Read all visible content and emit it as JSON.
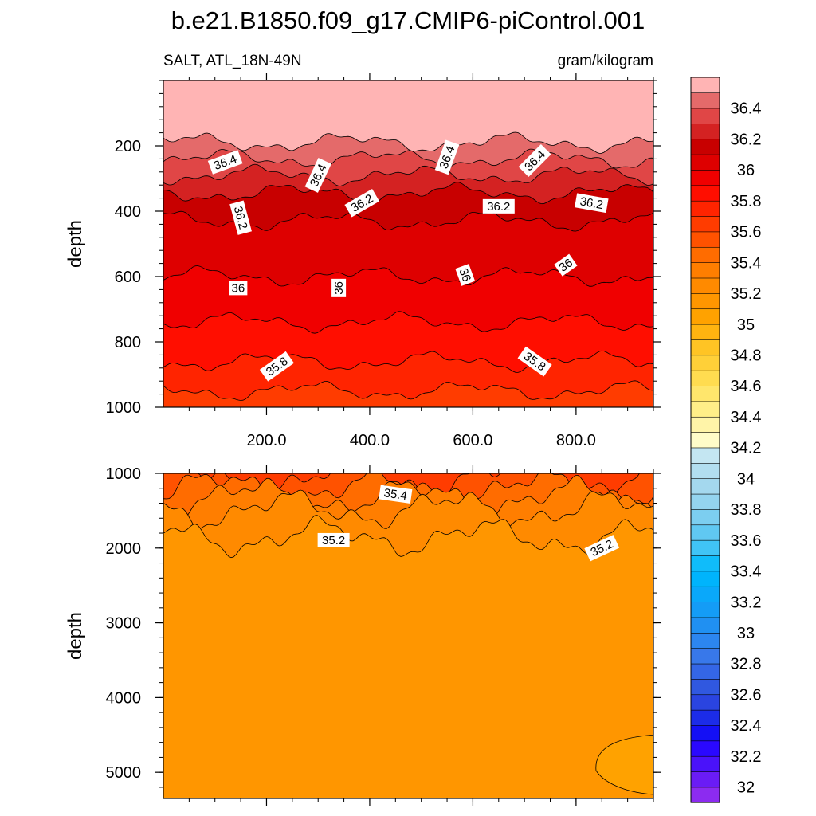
{
  "title": "b.e21.B1850.f09_g17.CMIP6-piControl.001",
  "chart_data": [
    {
      "type": "contour",
      "panel": "upper",
      "variable_label": "SALT, ATL_18N-49N",
      "units_label": "gram/kilogram",
      "ylabel": "depth",
      "xlabel": "",
      "xlim": [
        0,
        950
      ],
      "ylim": [
        1000,
        0
      ],
      "y_reversed": true,
      "x_tick_labels": [
        "200.0",
        "400.0",
        "600.0",
        "800.0"
      ],
      "x_ticks": [
        200,
        400,
        600,
        800
      ],
      "y_ticks": [
        200,
        400,
        600,
        800,
        1000
      ],
      "y_tick_labels": [
        "200",
        "400",
        "600",
        "800",
        "1000"
      ],
      "contour_lines": [
        {
          "level": 36.5,
          "mean_depth": 190
        },
        {
          "level": 36.4,
          "mean_depth": 240
        },
        {
          "level": 36.3,
          "mean_depth": 290
        },
        {
          "level": 36.2,
          "mean_depth": 345
        },
        {
          "level": 36.1,
          "mean_depth": 430
        },
        {
          "level": 36.0,
          "mean_depth": 600
        },
        {
          "level": 35.9,
          "mean_depth": 740
        },
        {
          "level": 35.8,
          "mean_depth": 860
        },
        {
          "level": 35.7,
          "mean_depth": 950
        }
      ],
      "contour_labels": [
        {
          "text": "36.4",
          "x": 120,
          "y": 250
        },
        {
          "text": "36.4",
          "x": 300,
          "y": 290
        },
        {
          "text": "36.4",
          "x": 550,
          "y": 235
        },
        {
          "text": "36.4",
          "x": 720,
          "y": 245
        },
        {
          "text": "36.2",
          "x": 150,
          "y": 420
        },
        {
          "text": "36.2",
          "x": 385,
          "y": 375
        },
        {
          "text": "36.2",
          "x": 650,
          "y": 385
        },
        {
          "text": "36.2",
          "x": 830,
          "y": 375
        },
        {
          "text": "36",
          "x": 145,
          "y": 635
        },
        {
          "text": "36",
          "x": 340,
          "y": 635
        },
        {
          "text": "36",
          "x": 585,
          "y": 595
        },
        {
          "text": "36",
          "x": 780,
          "y": 565
        },
        {
          "text": "35.8",
          "x": 220,
          "y": 875
        },
        {
          "text": "35.8",
          "x": 720,
          "y": 860
        }
      ]
    },
    {
      "type": "contour",
      "panel": "lower",
      "ylabel": "depth",
      "xlim": [
        0,
        950
      ],
      "ylim": [
        5350,
        1000
      ],
      "y_reversed": true,
      "y_ticks": [
        1000,
        2000,
        3000,
        4000,
        5000
      ],
      "y_tick_labels": [
        "1000",
        "2000",
        "3000",
        "4000",
        "5000"
      ],
      "contour_lines": [
        {
          "level": 35.6,
          "mean_depth": 1080
        },
        {
          "level": 35.5,
          "mean_depth": 1200
        },
        {
          "level": 35.4,
          "mean_depth": 1320
        },
        {
          "level": 35.3,
          "mean_depth": 1480
        },
        {
          "level": 35.2,
          "mean_depth": 1850
        }
      ],
      "contour_labels": [
        {
          "text": "35.4",
          "x": 450,
          "y": 1280
        },
        {
          "text": "35.2",
          "x": 330,
          "y": 1895
        },
        {
          "text": "35.2",
          "x": 850,
          "y": 2000
        }
      ]
    }
  ],
  "colorbar": {
    "levels_bottom_to_top": [
      32,
      32.1,
      32.2,
      32.3,
      32.4,
      32.5,
      32.6,
      32.7,
      32.8,
      32.9,
      33,
      33.1,
      33.2,
      33.3,
      33.4,
      33.5,
      33.6,
      33.7,
      33.8,
      33.9,
      34,
      34.1,
      34.2,
      34.3,
      34.4,
      34.5,
      34.6,
      34.7,
      34.8,
      34.9,
      35,
      35.1,
      35.2,
      35.3,
      35.4,
      35.5,
      35.6,
      35.7,
      35.8,
      35.9,
      36,
      36.1,
      36.2,
      36.3,
      36.4,
      36.5
    ],
    "tick_labels": [
      "32",
      "32.2",
      "32.4",
      "32.6",
      "32.8",
      "33",
      "33.2",
      "33.4",
      "33.6",
      "33.8",
      "34",
      "34.2",
      "34.4",
      "34.6",
      "34.8",
      "35",
      "35.2",
      "35.4",
      "35.6",
      "35.8",
      "36",
      "36.2",
      "36.4"
    ],
    "colors_bottom_to_top": [
      "#8c2bf0",
      "#6a1cf5",
      "#4a12fa",
      "#2a08ff",
      "#1410f5",
      "#1c2ce8",
      "#2a44e0",
      "#3058e0",
      "#3466e6",
      "#3878ea",
      "#2c86f0",
      "#2090f2",
      "#149cf6",
      "#0aa8fa",
      "#00b4fc",
      "#10bcfa",
      "#40c4f6",
      "#60c8f2",
      "#7ccef0",
      "#94d4ef",
      "#a4d8ee",
      "#b2def0",
      "#c4e6f2",
      "#fffcc8",
      "#fff4a8",
      "#ffee88",
      "#ffe66c",
      "#ffdc50",
      "#ffd038",
      "#ffc424",
      "#ffb410",
      "#ffa200",
      "#ff9600",
      "#ff8a00",
      "#ff7e00",
      "#ff6c00",
      "#ff5200",
      "#ff3c00",
      "#ff2400",
      "#ff0e00",
      "#f00000",
      "#de0000",
      "#c80000",
      "#d42222",
      "#e04646",
      "#e46a6a",
      "#ffb4b4"
    ]
  }
}
